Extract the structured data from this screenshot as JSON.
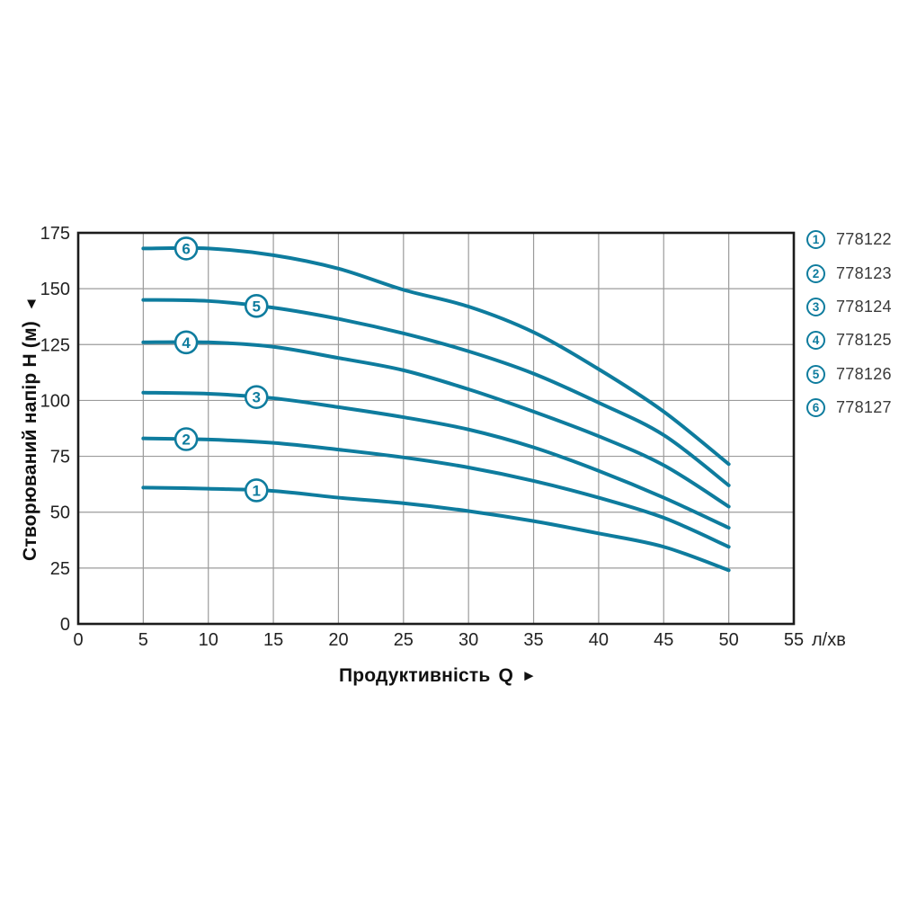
{
  "figure": {
    "y_axis_title": "Створюваний напір H (м)",
    "y_axis_arrow": "▲",
    "x_axis_title": "Продуктивність",
    "x_axis_symbol": "Q",
    "x_axis_arrow": "►",
    "x_axis_unit": "л/хв"
  },
  "chart_data": {
    "type": "line",
    "title": "",
    "xlabel": "Продуктивність Q (л/хв)",
    "ylabel": "Створюваний напір H (м)",
    "xlim": [
      0,
      55
    ],
    "ylim": [
      0,
      175
    ],
    "x_ticks": [
      0,
      5,
      10,
      15,
      20,
      25,
      30,
      35,
      40,
      45,
      50,
      55
    ],
    "y_ticks": [
      0,
      25,
      50,
      75,
      100,
      125,
      150,
      175
    ],
    "grid": true,
    "legend_position": "right-outside",
    "x": [
      5,
      10,
      15,
      20,
      25,
      30,
      35,
      40,
      45,
      50
    ],
    "series": [
      {
        "num": "1",
        "model": "778122",
        "label_q": 13.7,
        "values": [
          61,
          60.5,
          59.5,
          56.5,
          54,
          50.5,
          46,
          40.5,
          34.5,
          24
        ]
      },
      {
        "num": "2",
        "model": "778123",
        "label_q": 8.3,
        "values": [
          83,
          82.5,
          81,
          78,
          74.5,
          70,
          64,
          56.5,
          47.5,
          34.5
        ]
      },
      {
        "num": "3",
        "model": "778124",
        "label_q": 13.7,
        "values": [
          103.5,
          103,
          101,
          97,
          92.5,
          87,
          79,
          68.5,
          56.5,
          43
        ]
      },
      {
        "num": "4",
        "model": "778125",
        "label_q": 8.3,
        "values": [
          126,
          126,
          124,
          119,
          113.5,
          105,
          95,
          84,
          71,
          52.5
        ]
      },
      {
        "num": "5",
        "model": "778126",
        "label_q": 13.7,
        "values": [
          145,
          144.5,
          141.5,
          136.5,
          130,
          122,
          112,
          99,
          84.5,
          62
        ]
      },
      {
        "num": "6",
        "model": "778127",
        "label_q": 8.3,
        "values": [
          168,
          168,
          165,
          159,
          149.5,
          142,
          130.5,
          114,
          95,
          71.5
        ]
      }
    ],
    "colors": {
      "curve": "#0e7c9e",
      "grid": "#9b9b9b",
      "axis": "#1c1c1c",
      "tick_text": "#222222",
      "legend_text": "#3a3a3a"
    }
  },
  "legend": {
    "items": [
      {
        "num": "1",
        "model": "778122"
      },
      {
        "num": "2",
        "model": "778123"
      },
      {
        "num": "3",
        "model": "778124"
      },
      {
        "num": "4",
        "model": "778125"
      },
      {
        "num": "5",
        "model": "778126"
      },
      {
        "num": "6",
        "model": "778127"
      }
    ]
  }
}
